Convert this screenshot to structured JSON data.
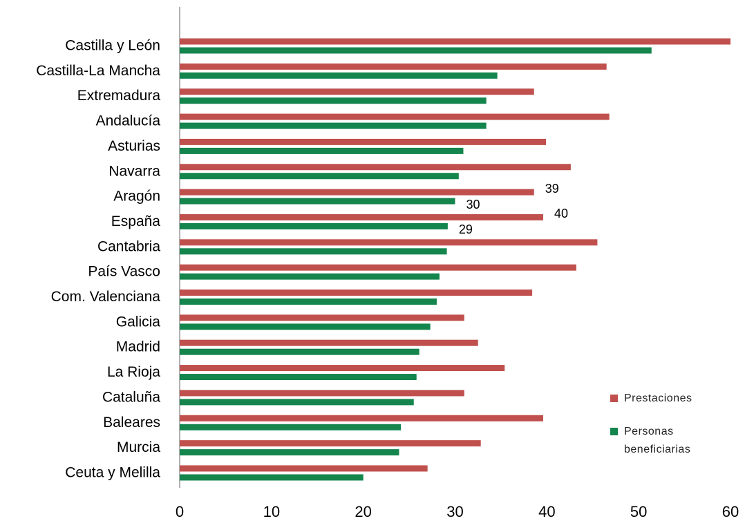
{
  "chart_data": {
    "type": "bar",
    "orientation": "horizontal",
    "categories": [
      "Castilla y León",
      "Castilla-La Mancha",
      "Extremadura",
      "Andalucía",
      "Asturias",
      "Navarra",
      "Aragón",
      "España",
      "Cantabria",
      "País Vasco",
      "Com. Valenciana",
      "Galicia",
      "Madrid",
      "La Rioja",
      "Cataluña",
      "Baleares",
      "Murcia",
      "Ceuta y Melilla"
    ],
    "series": [
      {
        "name": "Prestaciones",
        "color": "#c0504d",
        "values": [
          60,
          46.5,
          38.6,
          46.8,
          39.9,
          42.6,
          38.6,
          39.6,
          45.5,
          43.2,
          38.4,
          31.0,
          32.5,
          35.4,
          31.0,
          39.6,
          32.8,
          27.0
        ],
        "value_labels": [
          null,
          null,
          null,
          null,
          null,
          null,
          "39",
          "40",
          null,
          null,
          null,
          null,
          null,
          null,
          null,
          null,
          null,
          null
        ]
      },
      {
        "name": "Personas beneficiarias",
        "color": "#14854d",
        "values": [
          51.4,
          34.6,
          33.4,
          33.4,
          30.9,
          30.4,
          30.0,
          29.2,
          29.1,
          28.3,
          28.0,
          27.3,
          26.1,
          25.8,
          25.5,
          24.1,
          23.9,
          20.0
        ],
        "value_labels": [
          null,
          null,
          null,
          null,
          null,
          null,
          "30",
          "29",
          null,
          null,
          null,
          null,
          null,
          null,
          null,
          null,
          null,
          null
        ]
      }
    ],
    "xlim": [
      0,
      60
    ],
    "xticks": [
      0,
      10,
      20,
      30,
      40,
      50,
      60
    ],
    "grid": false,
    "legend": "lower right"
  }
}
